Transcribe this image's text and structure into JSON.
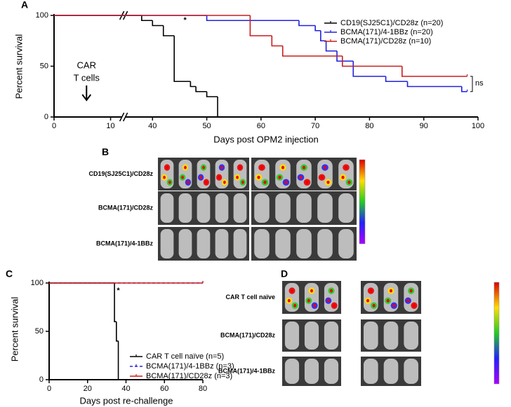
{
  "chart_data": [
    {
      "type": "line",
      "step": true,
      "panel": "A",
      "ylabel": "Percent survival",
      "xlabel": "Days post OPM2 injection",
      "xlim": [
        0,
        100
      ],
      "xbreak": [
        12,
        35
      ],
      "xticks": [
        0,
        10,
        40,
        50,
        60,
        70,
        80,
        90,
        100
      ],
      "ylim": [
        0,
        100
      ],
      "yticks": [
        0,
        50,
        100
      ],
      "series": [
        {
          "name": "CD19(SJ25C1)/CD28z (n=20)",
          "color": "#000000",
          "x": [
            0,
            38,
            40,
            42,
            44,
            47,
            48,
            50,
            52
          ],
          "values": [
            100,
            95,
            90,
            80,
            35,
            30,
            25,
            20,
            0
          ]
        },
        {
          "name": "BCMA(171)/4-1BBz (n=20)",
          "color": "#2222dd",
          "x": [
            0,
            50,
            67,
            70,
            71,
            72,
            74,
            77,
            83,
            87,
            97,
            98
          ],
          "values": [
            100,
            95,
            90,
            85,
            75,
            65,
            55,
            40,
            35,
            30,
            25,
            25
          ]
        },
        {
          "name": "BCMA(171)/CD28z (n=10)",
          "color": "#c81e1e",
          "x": [
            0,
            58,
            62,
            64,
            75,
            86,
            98
          ],
          "values": [
            100,
            80,
            70,
            60,
            50,
            40,
            40
          ]
        }
      ],
      "annotations": [
        {
          "text": "*",
          "x": 46,
          "y": 95
        },
        {
          "text": "ns",
          "x": 100,
          "y": 33
        }
      ],
      "arrow": {
        "lines": [
          "CAR",
          "T cells"
        ],
        "x": 5
      }
    },
    {
      "type": "line",
      "step": true,
      "panel": "C",
      "ylabel": "Percent survival",
      "xlabel": "Days post re-challenge",
      "xlim": [
        0,
        80
      ],
      "xticks": [
        0,
        20,
        40,
        60,
        80
      ],
      "ylim": [
        0,
        100
      ],
      "yticks": [
        0,
        50,
        100
      ],
      "series": [
        {
          "name": "CAR T cell naïve (n=5)",
          "color": "#000000",
          "x": [
            0,
            34,
            35,
            36
          ],
          "values": [
            100,
            60,
            40,
            0
          ]
        },
        {
          "name": "BCMA(171)/4-1BBz (n=3)",
          "color": "#2222dd",
          "dashed": true,
          "x": [
            0,
            80
          ],
          "values": [
            100,
            100
          ]
        },
        {
          "name": "BCMA(171)/CD28z (n=3)",
          "color": "#c81e1e",
          "x": [
            0,
            80
          ],
          "values": [
            100,
            100
          ]
        }
      ],
      "annotations": [
        {
          "text": "*",
          "x": 36,
          "y": 92
        }
      ]
    }
  ],
  "image_panels": [
    {
      "panel": "B",
      "rows": [
        "CD19(SJ25C1)/CD28z",
        "BCMA(171)/CD28z",
        "BCMA(171)/4-1BBz"
      ]
    },
    {
      "panel": "D",
      "rows": [
        "CAR T cell naïve",
        "BCMA(171)/CD28z",
        "BCMA(171)/4-1BBz"
      ]
    }
  ]
}
